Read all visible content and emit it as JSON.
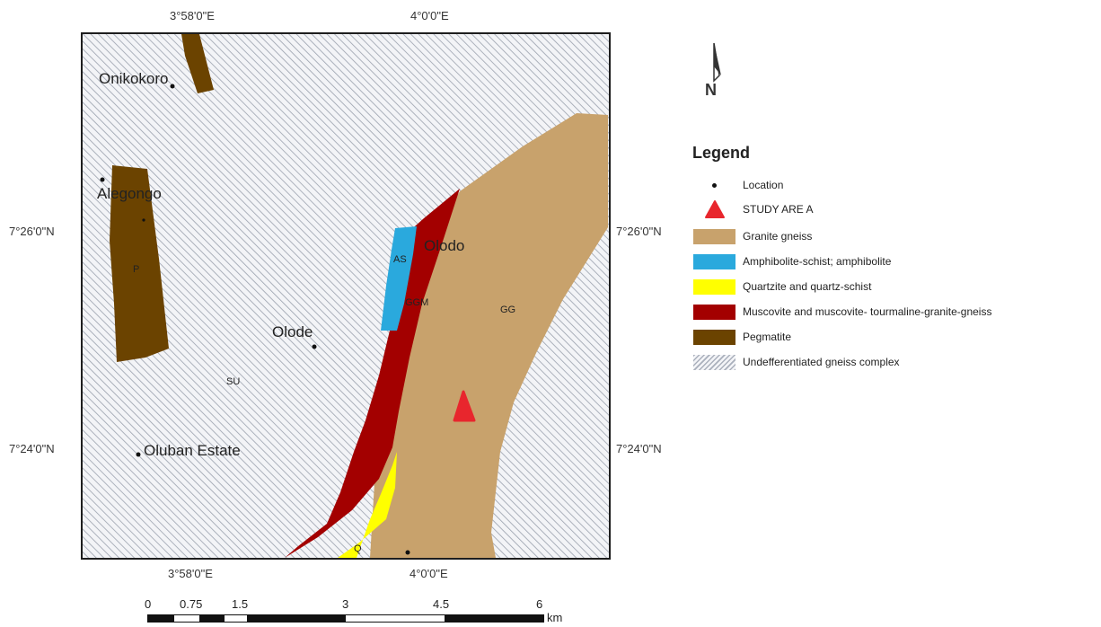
{
  "coordinates": {
    "top_lon_1": "3°58'0\"E",
    "top_lon_2": "4°0'0\"E",
    "bottom_lon_1": "3°58'0\"E",
    "bottom_lon_2": "4°0'0\"E",
    "left_lat_1": "7°26'0\"N",
    "left_lat_2": "7°24'0\"N",
    "right_lat_1": "7°26'0\"N",
    "right_lat_2": "7°24'0\"N"
  },
  "places": {
    "onikokoro": "Onikokoro",
    "alegongo": "Alegongo",
    "olodo": "Olodo",
    "olode": "Olode",
    "oluban": "Oluban Estate"
  },
  "unit_codes": {
    "p": "P",
    "as": "AS",
    "ggm": "GGM",
    "gg": "GG",
    "su": "SU",
    "q": "Q"
  },
  "north_arrow": {
    "label": "N"
  },
  "legend": {
    "title": "Legend",
    "items": [
      {
        "label": "Location",
        "kind": "dot"
      },
      {
        "label": "STUDY ARE A",
        "kind": "triangle",
        "color": "#e8262d"
      },
      {
        "label": "Granite gneiss",
        "kind": "fill",
        "color": "#c8a26c"
      },
      {
        "label": "Amphibolite-schist; amphibolite",
        "kind": "fill",
        "color": "#2aa9dd"
      },
      {
        "label": "Quartzite and quartz-schist",
        "kind": "fill",
        "color": "#ffff00"
      },
      {
        "label": "Muscovite and muscovite- tourmaline-granite-gneiss",
        "kind": "fill",
        "color": "#a30000"
      },
      {
        "label": "Pegmatite",
        "kind": "fill",
        "color": "#6b4300"
      },
      {
        "label": "Undefferentiated gneiss complex",
        "kind": "hatch",
        "color": "#aab0bc"
      }
    ]
  },
  "scale_bar": {
    "labels": [
      "0",
      "0.75",
      "1.5",
      "3",
      "4.5",
      "6"
    ],
    "unit": "km"
  }
}
